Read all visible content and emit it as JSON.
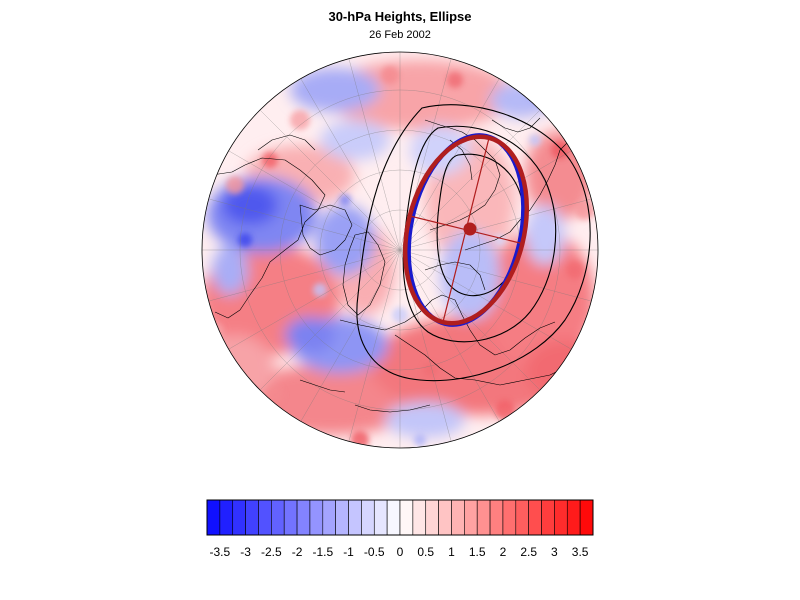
{
  "header": {
    "title": "30-hPa Heights, Ellipse",
    "date": "26 Feb 2002"
  },
  "colors": {
    "negative_max": "#1010ff",
    "positive_max": "#ff0a0a",
    "neutral": "#ffffff",
    "ellipse_observed": "#1a1acc",
    "ellipse_fit": "#b01e1e",
    "contour": "#000000"
  },
  "colorbar": {
    "min": -3.75,
    "max": 3.75,
    "step": 0.25,
    "tick_labels": [
      "-3.5",
      "-3",
      "-2.5",
      "-2",
      "-1.5",
      "-1",
      "-0.5",
      "0",
      "0.5",
      "1",
      "1.5",
      "2",
      "2.5",
      "3",
      "3.5"
    ]
  },
  "map": {
    "projection": "polar-stereographic",
    "hemisphere": "north",
    "shading": "standardized height anomaly",
    "ellipse_center_marker": true
  }
}
